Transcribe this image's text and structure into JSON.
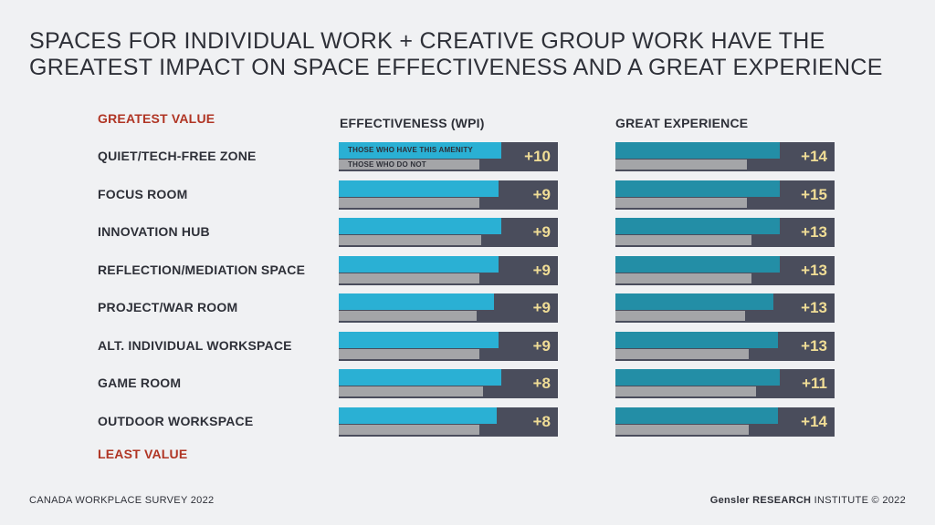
{
  "title_line1": "SPACES FOR INDIVIDUAL WORK + CREATIVE GROUP WORK HAVE THE",
  "title_line2": "GREATEST IMPACT ON SPACE EFFECTIVENESS AND A GREAT EXPERIENCE",
  "greatest_label": "GREATEST VALUE",
  "least_label": "LEAST VALUE",
  "legend": {
    "have": "THOSE WHO HAVE THIS AMENITY",
    "not": "THOSE WHO DO NOT"
  },
  "footer": {
    "survey": "CANADA WORKPLACE SURVEY 2022",
    "brand_bold": "Gensler RESEARCH",
    "brand_rest": " INSTITUTE © 2022"
  },
  "colors": {
    "accent_red": "#b03524",
    "wpi_have": "#2ab0d4",
    "exp_have": "#238ea6",
    "not_bar": "#a4a5a8",
    "track": "#4a4d5c",
    "value_text": "#f0dd96"
  },
  "chart_data": [
    {
      "type": "bar",
      "title": "EFFECTIVENESS (WPI)",
      "categories": [
        "QUIET/TECH-FREE ZONE",
        "FOCUS ROOM",
        "INNOVATION HUB",
        "REFLECTION/MEDIATION SPACE",
        "PROJECT/WAR ROOM",
        "ALT. INDIVIDUAL WORKSPACE",
        "GAME ROOM",
        "OUTDOOR WORKSPACE"
      ],
      "series": [
        {
          "name": "THOSE WHO HAVE THIS AMENITY",
          "values": [
            74,
            73,
            74,
            73,
            71,
            73,
            74,
            72
          ]
        },
        {
          "name": "THOSE WHO DO NOT",
          "values": [
            64,
            64,
            65,
            64,
            63,
            64,
            66,
            64
          ]
        }
      ],
      "labels": [
        "+10",
        "+9",
        "+9",
        "+9",
        "+9",
        "+9",
        "+8",
        "+8"
      ],
      "ylim": [
        0,
        100
      ]
    },
    {
      "type": "bar",
      "title": "GREAT EXPERIENCE",
      "categories": [
        "QUIET/TECH-FREE ZONE",
        "FOCUS ROOM",
        "INNOVATION HUB",
        "REFLECTION/MEDIATION SPACE",
        "PROJECT/WAR ROOM",
        "ALT. INDIVIDUAL WORKSPACE",
        "GAME ROOM",
        "OUTDOOR WORKSPACE"
      ],
      "series": [
        {
          "name": "THOSE WHO HAVE THIS AMENITY",
          "values": [
            75,
            75,
            75,
            75,
            72,
            74,
            75,
            74
          ]
        },
        {
          "name": "THOSE WHO DO NOT",
          "values": [
            60,
            60,
            62,
            62,
            59,
            61,
            64,
            61
          ]
        }
      ],
      "labels": [
        "+14",
        "+15",
        "+13",
        "+13",
        "+13",
        "+13",
        "+11",
        "+14"
      ],
      "ylim": [
        0,
        100
      ]
    }
  ]
}
